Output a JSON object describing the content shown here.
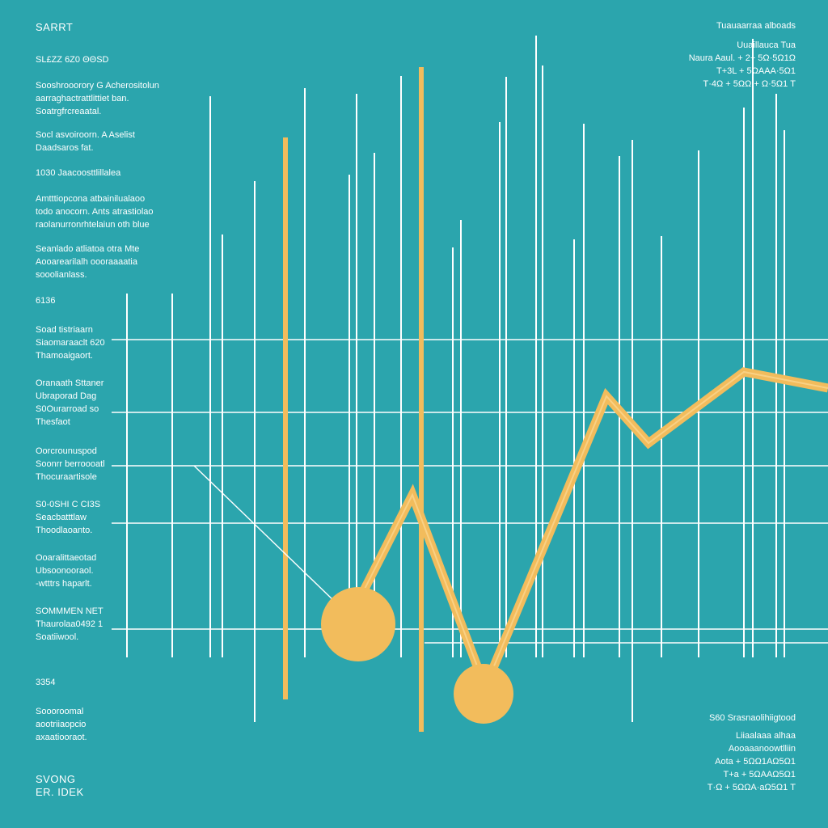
{
  "header": {
    "title": "SARRT",
    "subtitle": "SL£ZZ 6Z0 ΘΘSD"
  },
  "left_blocks": [
    {
      "lines": [
        "Sooshrooorory G Acherositolun",
        "aarraghactrattlittiet ban.",
        "Soatrgfrcreaatal."
      ]
    },
    {
      "lines": [
        "Socl asvoiroorn. A Aselist",
        "Daadsaros fat."
      ]
    },
    {
      "lines": [
        "1030 Jaacoosttlillalea"
      ]
    },
    {
      "lines": [
        "Amtttiopcona atbainilualaoo",
        "todo anocorn. Ants atrastiolao",
        "raolanurronrhtelaiun oth blue"
      ]
    },
    {
      "lines": [
        "Seanlado atliatoa otra Mte",
        "Aooarearilalh oooraaaatia",
        "sooolianlass."
      ]
    }
  ],
  "axis_labels": [
    {
      "lines": [
        "6136"
      ]
    },
    {
      "lines": [
        "Soad tistriaarn",
        "Siaomaraaclt 620",
        "Thamoaigaort."
      ]
    },
    {
      "lines": [
        "Oranaath Sttaner",
        "Ubraporad Dag",
        "S0Ourarroad so",
        "Thesfaot"
      ]
    },
    {
      "lines": [
        "Oorcrounuspod",
        "Soonrr berroooatl",
        "Thocuraartisole"
      ]
    },
    {
      "lines": [
        "S0-0SHI C CI3S",
        "Seacbatttlaw",
        "Thoodlaoanto."
      ]
    },
    {
      "lines": [
        "Ooaralittaeotad",
        "Ubsoonooraol.",
        "-wtttrs haparlt."
      ]
    },
    {
      "lines": [
        "SOMMMEN NET",
        "Thaurolaa0492 1",
        "Soatiiwool."
      ]
    },
    {
      "lines": [
        "3354"
      ]
    },
    {
      "lines": [
        "Soooroomal",
        "aootriiaopcio",
        "axaatiooraot."
      ]
    }
  ],
  "footer": {
    "line1": "SVONG",
    "line2": "ER. IDEK"
  },
  "top_right": {
    "lines": [
      "Tuauaarraa alboads",
      "Uuaillauca Tua",
      "Naura Aaul. + 2+ 5Ω·5Ω1Ω",
      "T+3L + 5ΩΑΑΑ·5Ω1",
      "T·4Ω + 5ΩΩ + Ω·5Ω1 T"
    ]
  },
  "bottom_right": {
    "lines": [
      "S60 Srasnaolihiigtood",
      "Liiaalaaa alhaa",
      "Aooaaanoowtlliin",
      "Aota + 5ΩΩ1ΑΩ5Ω1",
      "T+a + 5ΩΑΑΩ5Ω1",
      "T·Ω + 5ΩΩΑ·aΩ5Ω1 T"
    ]
  },
  "colors": {
    "background": "#2ba5ad",
    "grid": "#ffffff",
    "accent": "#f2bc5c"
  },
  "chart_data": {
    "type": "line",
    "title": "",
    "xlabel": "",
    "ylabel": "",
    "grid": true,
    "x_range": [
      0,
      1024
    ],
    "y_range": [
      0,
      1024
    ],
    "series": [
      {
        "values": [
          [
            445,
            740
          ],
          [
            510,
            612
          ],
          [
            600,
            850
          ],
          [
            750,
            490
          ],
          [
            802,
            548
          ],
          [
            920,
            460
          ],
          [
            1024,
            480
          ]
        ]
      },
      {
        "values": [
          [
            240,
            576
          ],
          [
            443,
            772
          ]
        ]
      }
    ],
    "markers": [
      [
        443,
        772
      ],
      [
        598,
        858
      ]
    ],
    "highlight_bars": [
      [
        353,
        170,
        865
      ],
      [
        521,
        83,
        905
      ]
    ],
    "vertical_bars": [
      [
        157,
        363,
        813
      ],
      [
        213,
        363,
        813
      ],
      [
        260,
        119,
        813
      ],
      [
        275,
        290,
        813
      ],
      [
        315,
        224,
        893
      ],
      [
        377,
        109,
        813
      ],
      [
        432,
        216,
        813
      ],
      [
        441,
        116,
        813
      ],
      [
        463,
        189,
        813
      ],
      [
        496,
        94,
        813
      ],
      [
        560,
        306,
        813
      ],
      [
        570,
        272,
        813
      ],
      [
        618,
        151,
        813
      ],
      [
        626,
        95,
        813
      ],
      [
        663,
        44,
        813
      ],
      [
        671,
        81,
        813
      ],
      [
        710,
        296,
        813
      ],
      [
        722,
        153,
        813
      ],
      [
        766,
        193,
        813
      ],
      [
        782,
        173,
        893
      ],
      [
        818,
        292,
        813
      ],
      [
        864,
        186,
        813
      ],
      [
        920,
        133,
        813
      ],
      [
        931,
        48,
        813
      ],
      [
        960,
        116,
        813
      ],
      [
        970,
        161,
        813
      ]
    ],
    "horizontal_lines": [
      [
        420,
        138,
        1024
      ],
      [
        510,
        138,
        1024
      ],
      [
        576,
        138,
        1024
      ],
      [
        647,
        138,
        1024
      ],
      [
        778,
        138,
        1024
      ],
      [
        795,
        525,
        1024
      ]
    ]
  }
}
